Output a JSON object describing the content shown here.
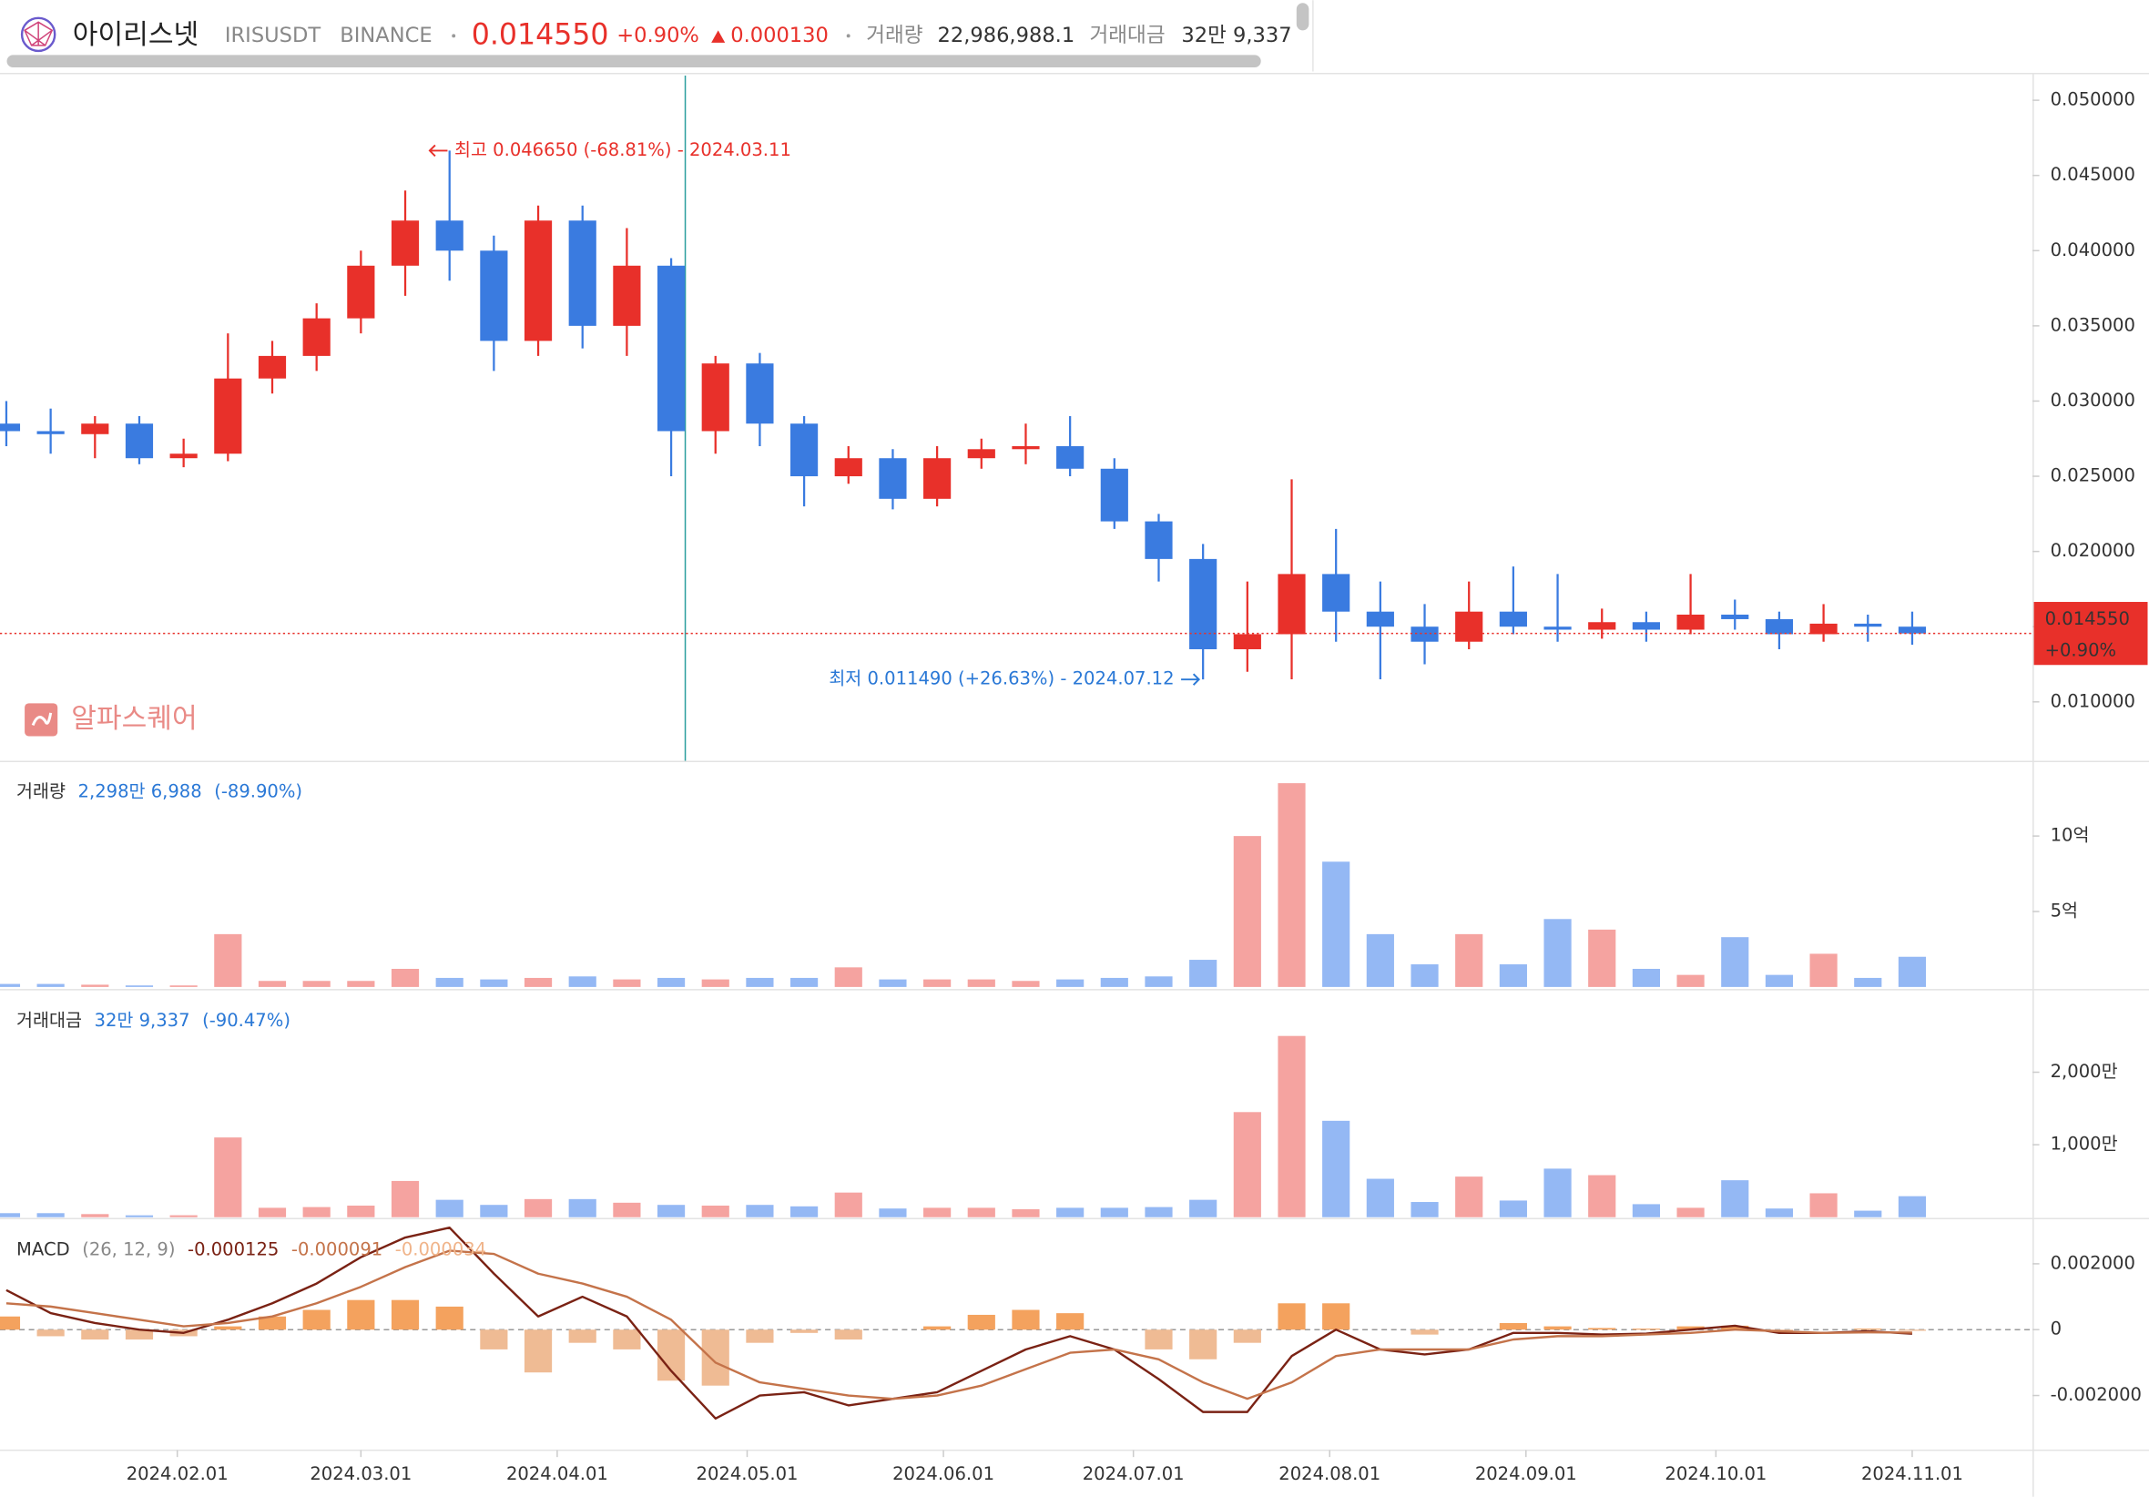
{
  "header": {
    "name": "아이리스넷",
    "symbol": "IRISUSDT",
    "exchange": "BINANCE",
    "price": "0.014550",
    "change_rate": "+0.90%",
    "change": "0.000130",
    "volume_label": "거래량",
    "volume": "22,986,988.1",
    "amount_label": "거래대금",
    "amount": "32만 9,337"
  },
  "watermark": "알파스퀘어",
  "chart_data": [
    {
      "type": "candlestick",
      "x": [
        "2024.01.05",
        "2024.01.12",
        "2024.01.19",
        "2024.01.26",
        "2024.02.02",
        "2024.02.09",
        "2024.02.16",
        "2024.02.23",
        "2024.03.01",
        "2024.03.08",
        "2024.03.15",
        "2024.03.22",
        "2024.03.29",
        "2024.04.05",
        "2024.04.12",
        "2024.04.19",
        "2024.04.26",
        "2024.05.03",
        "2024.05.10",
        "2024.05.17",
        "2024.05.24",
        "2024.05.31",
        "2024.06.07",
        "2024.06.14",
        "2024.06.21",
        "2024.06.28",
        "2024.07.05",
        "2024.07.12",
        "2024.07.19",
        "2024.07.26",
        "2024.08.02",
        "2024.08.09",
        "2024.08.16",
        "2024.08.23",
        "2024.08.30",
        "2024.09.06",
        "2024.09.13",
        "2024.09.20",
        "2024.09.27",
        "2024.10.04",
        "2024.10.11",
        "2024.10.18",
        "2024.10.25",
        "2024.11.01"
      ],
      "open": [
        0.0285,
        0.028,
        0.0278,
        0.0285,
        0.0262,
        0.0265,
        0.0315,
        0.033,
        0.0355,
        0.039,
        0.042,
        0.04,
        0.034,
        0.042,
        0.035,
        0.039,
        0.028,
        0.0325,
        0.0285,
        0.025,
        0.0262,
        0.0235,
        0.0262,
        0.0268,
        0.027,
        0.0255,
        0.022,
        0.0195,
        0.0135,
        0.0145,
        0.0185,
        0.016,
        0.015,
        0.014,
        0.016,
        0.015,
        0.0148,
        0.0153,
        0.0148,
        0.0158,
        0.0155,
        0.0145,
        0.0152,
        0.015
      ],
      "high": [
        0.03,
        0.0295,
        0.029,
        0.029,
        0.0275,
        0.0345,
        0.034,
        0.0365,
        0.04,
        0.044,
        0.04665,
        0.041,
        0.043,
        0.043,
        0.0415,
        0.0395,
        0.033,
        0.0332,
        0.029,
        0.027,
        0.0268,
        0.027,
        0.0275,
        0.0285,
        0.029,
        0.0262,
        0.0225,
        0.0205,
        0.018,
        0.0248,
        0.0215,
        0.018,
        0.0165,
        0.018,
        0.019,
        0.0185,
        0.0162,
        0.016,
        0.0185,
        0.0168,
        0.016,
        0.0165,
        0.0158,
        0.016
      ],
      "low": [
        0.027,
        0.0265,
        0.0262,
        0.0258,
        0.0256,
        0.026,
        0.0305,
        0.032,
        0.0345,
        0.037,
        0.038,
        0.032,
        0.033,
        0.0335,
        0.033,
        0.025,
        0.0265,
        0.027,
        0.023,
        0.0245,
        0.0228,
        0.023,
        0.0255,
        0.0258,
        0.025,
        0.0215,
        0.018,
        0.01149,
        0.012,
        0.0115,
        0.014,
        0.0115,
        0.0125,
        0.0135,
        0.0145,
        0.014,
        0.0142,
        0.014,
        0.0145,
        0.0148,
        0.0135,
        0.014,
        0.014,
        0.0138
      ],
      "close": [
        0.028,
        0.0278,
        0.0285,
        0.0262,
        0.0265,
        0.0315,
        0.033,
        0.0355,
        0.039,
        0.042,
        0.04,
        0.034,
        0.042,
        0.035,
        0.039,
        0.028,
        0.0325,
        0.0285,
        0.025,
        0.0262,
        0.0235,
        0.0262,
        0.0268,
        0.027,
        0.0255,
        0.022,
        0.0195,
        0.0135,
        0.0145,
        0.0185,
        0.016,
        0.015,
        0.014,
        0.016,
        0.015,
        0.0148,
        0.0153,
        0.0148,
        0.0158,
        0.0155,
        0.0145,
        0.0152,
        0.015,
        0.01455
      ],
      "up_color": "#e8302a",
      "down_color": "#3a7be0",
      "xlim": [
        "2024.01.04",
        "2024.11.20"
      ],
      "xticks": [
        "2024.02.01",
        "2024.03.01",
        "2024.04.01",
        "2024.05.01",
        "2024.06.01",
        "2024.07.01",
        "2024.08.01",
        "2024.09.01",
        "2024.10.01",
        "2024.11.01"
      ],
      "ylim": [
        0.00608,
        0.05164
      ],
      "yticks": [
        {
          "value": 0.01,
          "label": "0.010000"
        },
        {
          "value": 0.015,
          "label": "0.015000"
        },
        {
          "value": 0.02,
          "label": "0.020000"
        },
        {
          "value": 0.025,
          "label": "0.025000"
        },
        {
          "value": 0.03,
          "label": "0.030000"
        },
        {
          "value": 0.035,
          "label": "0.035000"
        },
        {
          "value": 0.04,
          "label": "0.040000"
        },
        {
          "value": 0.045,
          "label": "0.045000"
        },
        {
          "value": 0.05,
          "label": "0.050000"
        }
      ],
      "last_price": {
        "value": 0.01455,
        "label": "0.014550"
      },
      "last_change": "+0.90%",
      "annotations": [
        {
          "text": "최고 0.046650 (-68.81%) - 2024.03.11",
          "x": "2024.03.11",
          "y": 0.04665,
          "side": "right",
          "color": "#e8302a"
        },
        {
          "text": "최저 0.011490 (+26.63%) - 2024.07.12",
          "x": "2024.07.12",
          "y": 0.01149,
          "side": "left",
          "color": "#2a78d6"
        }
      ]
    },
    {
      "type": "bar",
      "title": "거래량",
      "last_text": "2,298만 6,988",
      "change": "(-89.90%)",
      "x": [
        "2024.01.05",
        "2024.01.12",
        "2024.01.19",
        "2024.01.26",
        "2024.02.02",
        "2024.02.09",
        "2024.02.16",
        "2024.02.23",
        "2024.03.01",
        "2024.03.08",
        "2024.03.15",
        "2024.03.22",
        "2024.03.29",
        "2024.04.05",
        "2024.04.12",
        "2024.04.19",
        "2024.04.26",
        "2024.05.03",
        "2024.05.10",
        "2024.05.17",
        "2024.05.24",
        "2024.05.31",
        "2024.06.07",
        "2024.06.14",
        "2024.06.21",
        "2024.06.28",
        "2024.07.05",
        "2024.07.12",
        "2024.07.19",
        "2024.07.26",
        "2024.08.02",
        "2024.08.09",
        "2024.08.16",
        "2024.08.23",
        "2024.08.30",
        "2024.09.06",
        "2024.09.13",
        "2024.09.20",
        "2024.09.27",
        "2024.10.04",
        "2024.10.11",
        "2024.10.18",
        "2024.10.25",
        "2024.11.01"
      ],
      "values": [
        20000000,
        20000000,
        15000000,
        10000000,
        10000000,
        350000000,
        40000000,
        40000000,
        40000000,
        120000000,
        60000000,
        50000000,
        60000000,
        70000000,
        50000000,
        60000000,
        50000000,
        60000000,
        60000000,
        130000000,
        50000000,
        50000000,
        50000000,
        40000000,
        50000000,
        60000000,
        70000000,
        180000000,
        1000000000,
        1350000000,
        830000000,
        350000000,
        150000000,
        350000000,
        150000000,
        450000000,
        380000000,
        120000000,
        80000000,
        330000000,
        80000000,
        220000000,
        60000000,
        200000000
      ],
      "up_color": "#f5a3a0",
      "down_color": "#94b8f4",
      "ylim": [
        0,
        1480000000
      ],
      "yticks": [
        {
          "value": 500000000,
          "label": "5억"
        },
        {
          "value": 1000000000,
          "label": "10억"
        }
      ]
    },
    {
      "type": "bar",
      "title": "거래대금",
      "last_text": "32만 9,337",
      "change": "(-90.47%)",
      "x": [
        "2024.01.05",
        "2024.01.12",
        "2024.01.19",
        "2024.01.26",
        "2024.02.02",
        "2024.02.09",
        "2024.02.16",
        "2024.02.23",
        "2024.03.01",
        "2024.03.08",
        "2024.03.15",
        "2024.03.22",
        "2024.03.29",
        "2024.04.05",
        "2024.04.12",
        "2024.04.19",
        "2024.04.26",
        "2024.05.03",
        "2024.05.10",
        "2024.05.17",
        "2024.05.24",
        "2024.05.31",
        "2024.06.07",
        "2024.06.14",
        "2024.06.21",
        "2024.06.28",
        "2024.07.05",
        "2024.07.12",
        "2024.07.19",
        "2024.07.26",
        "2024.08.02",
        "2024.08.09",
        "2024.08.16",
        "2024.08.23",
        "2024.08.30",
        "2024.09.06",
        "2024.09.13",
        "2024.09.20",
        "2024.09.27",
        "2024.10.04",
        "2024.10.11",
        "2024.10.18",
        "2024.10.25",
        "2024.11.01"
      ],
      "values": [
        560000,
        560000,
        430000,
        260000,
        270000,
        11000000,
        1300000,
        1400000,
        1600000,
        5000000,
        2400000,
        1700000,
        2500000,
        2500000,
        2000000,
        1700000,
        1600000,
        1700000,
        1500000,
        3400000,
        1200000,
        1300000,
        1300000,
        1100000,
        1300000,
        1300000,
        1400000,
        2400000,
        14500000,
        25000000,
        13300000,
        5300000,
        2100000,
        5600000,
        2300000,
        6700000,
        5800000,
        1800000,
        1300000,
        5100000,
        1200000,
        3300000,
        900000,
        2900000
      ],
      "up_color": "#f5a3a0",
      "down_color": "#94b8f4",
      "ylim": [
        0,
        31000000
      ],
      "yticks": [
        {
          "value": 10000000,
          "label": "1,000만"
        },
        {
          "value": 20000000,
          "label": "2,000만"
        }
      ]
    },
    {
      "type": "macd",
      "title": "MACD",
      "params": "(26, 12, 9)",
      "x": [
        "2024.01.05",
        "2024.01.12",
        "2024.01.19",
        "2024.01.26",
        "2024.02.02",
        "2024.02.09",
        "2024.02.16",
        "2024.02.23",
        "2024.03.01",
        "2024.03.08",
        "2024.03.15",
        "2024.03.22",
        "2024.03.29",
        "2024.04.05",
        "2024.04.12",
        "2024.04.19",
        "2024.04.26",
        "2024.05.03",
        "2024.05.10",
        "2024.05.17",
        "2024.05.24",
        "2024.05.31",
        "2024.06.07",
        "2024.06.14",
        "2024.06.21",
        "2024.06.28",
        "2024.07.05",
        "2024.07.12",
        "2024.07.19",
        "2024.07.26",
        "2024.08.02",
        "2024.08.09",
        "2024.08.16",
        "2024.08.23",
        "2024.08.30",
        "2024.09.06",
        "2024.09.13",
        "2024.09.20",
        "2024.09.27",
        "2024.10.04",
        "2024.10.11",
        "2024.10.18",
        "2024.10.25",
        "2024.11.01"
      ],
      "series": [
        {
          "type": "bar",
          "color": "#f4a25e",
          "negative_color": "#efbb94",
          "legend_color": "#f0b48a",
          "legend_value": "-0.000034",
          "values": [
            0.0004,
            -0.0002,
            -0.0003,
            -0.0003,
            -0.0002,
            0.0001,
            0.0004,
            0.0006,
            0.0009,
            0.0009,
            0.0007,
            -0.0006,
            -0.0013,
            -0.0004,
            -0.0006,
            -0.00155,
            -0.0017,
            -0.0004,
            -0.0001,
            -0.0003,
            0.0,
            0.0001,
            0.00045,
            0.0006,
            0.0005,
            0.0,
            -0.0006,
            -0.0009,
            -0.0004,
            0.0008,
            0.0008,
            0.0,
            -0.00015,
            0.0,
            0.0002,
            0.0001,
            5e-05,
            3e-05,
            0.0001,
            0.00012,
            -5e-05,
            0.0,
            3e-05,
            -3.4e-05
          ]
        },
        {
          "type": "line",
          "color": "#7a2214",
          "legend_value": "-0.000125",
          "values": [
            0.0012,
            0.0005,
            0.0002,
            0.0,
            -0.0001,
            0.0003,
            0.0008,
            0.0014,
            0.0022,
            0.0028,
            0.0031,
            0.0017,
            0.0004,
            0.001,
            0.0004,
            -0.00125,
            -0.0027,
            -0.002,
            -0.0019,
            -0.0023,
            -0.0021,
            -0.0019,
            -0.00125,
            -0.0006,
            -0.0002,
            -0.0006,
            -0.0015,
            -0.0025,
            -0.0025,
            -0.0008,
            0.0,
            -0.0006,
            -0.00075,
            -0.0006,
            -0.0001,
            -0.0001,
            -0.00015,
            -0.00012,
            0.0,
            0.00012,
            -0.0001,
            -0.0001,
            -5e-05,
            -0.000125
          ]
        },
        {
          "type": "line",
          "color": "#c4734a",
          "legend_value": "-0.000091",
          "values": [
            0.0008,
            0.0007,
            0.0005,
            0.0003,
            0.0001,
            0.0002,
            0.0004,
            0.0008,
            0.0013,
            0.0019,
            0.0024,
            0.0023,
            0.0017,
            0.0014,
            0.001,
            0.0003,
            -0.001,
            -0.0016,
            -0.0018,
            -0.002,
            -0.0021,
            -0.002,
            -0.0017,
            -0.0012,
            -0.0007,
            -0.0006,
            -0.0009,
            -0.0016,
            -0.0021,
            -0.0016,
            -0.0008,
            -0.0006,
            -0.0006,
            -0.0006,
            -0.0003,
            -0.0002,
            -0.0002,
            -0.00015,
            -0.0001,
            0.0,
            -5e-05,
            -0.0001,
            -8e-05,
            -9.1e-05
          ]
        }
      ],
      "zero_line": true,
      "ylim": [
        -0.00362,
        0.00329
      ],
      "yticks": [
        {
          "value": -0.002,
          "label": "-0.002000"
        },
        0,
        {
          "value": 0.002,
          "label": "0.002000"
        }
      ]
    }
  ]
}
